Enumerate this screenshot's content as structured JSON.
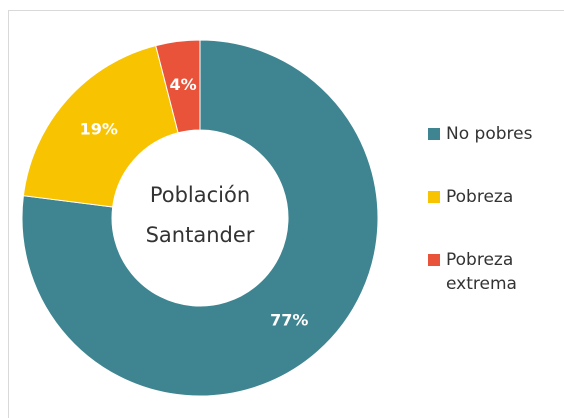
{
  "chart_data": {
    "type": "pie",
    "center_label": [
      "Población",
      "Santander"
    ],
    "categories": [
      "No pobres",
      "Pobreza",
      "Pobreza extrema"
    ],
    "values": [
      77,
      19,
      4
    ],
    "value_labels": [
      "77%",
      "19%",
      "4%"
    ],
    "colors": [
      "#3e8591",
      "#f8c300",
      "#e9533a"
    ],
    "legend": "right"
  }
}
